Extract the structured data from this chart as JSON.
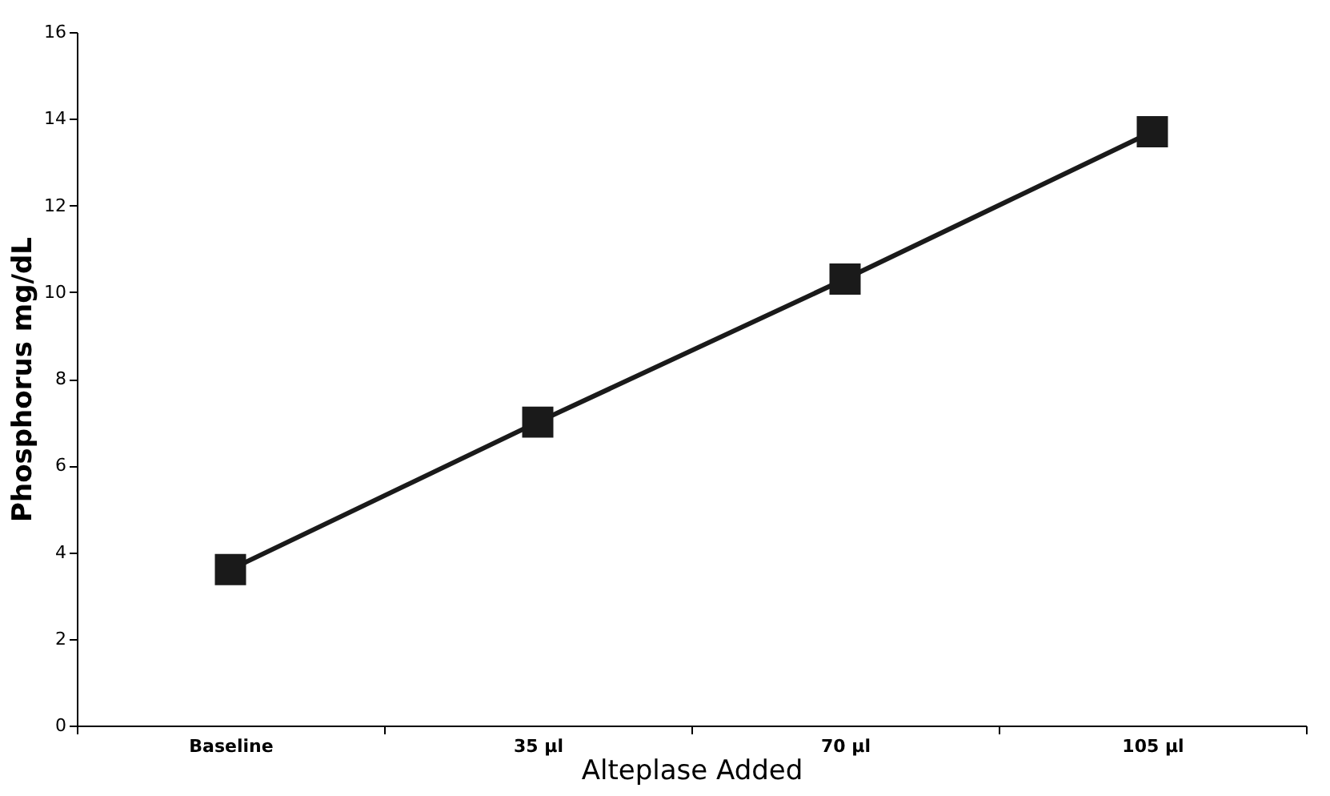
{
  "chart_data": {
    "type": "line",
    "xlabel": "Alteplase Added",
    "ylabel": "Phosphorus mg/dL",
    "categories": [
      "Baseline",
      "35 µl",
      "70 µl",
      "105 µl"
    ],
    "series": [
      {
        "color": "#1a1a1a",
        "values": [
          3.6,
          7.0,
          10.3,
          13.7
        ]
      }
    ],
    "ylim": [
      0,
      16
    ],
    "yticks": [
      0,
      2,
      4,
      6,
      8,
      10,
      12,
      14,
      16
    ],
    "grid": false,
    "marker": "square",
    "line_style": "solid"
  }
}
